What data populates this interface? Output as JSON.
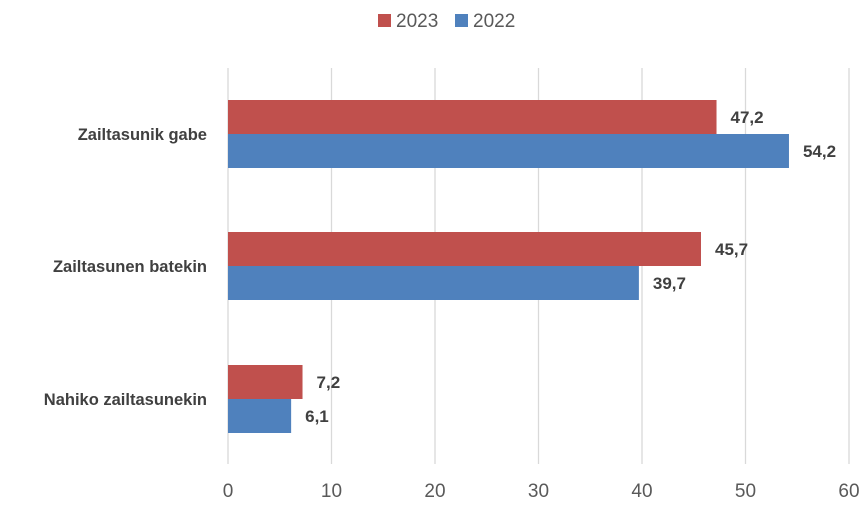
{
  "chart_data": {
    "type": "bar",
    "orientation": "horizontal",
    "title": "",
    "xlabel": "",
    "ylabel": "",
    "categories": [
      "Zailtasunik gabe",
      "Zailtasunen batekin",
      "Nahiko zailtasunekin"
    ],
    "series": [
      {
        "name": "2023",
        "color": "#c0504d",
        "values": [
          47.2,
          45.7,
          7.2
        ],
        "labels": [
          "47,2",
          "45,7",
          "7,2"
        ]
      },
      {
        "name": "2022",
        "color": "#4f81bd",
        "values": [
          54.2,
          39.7,
          6.1
        ],
        "labels": [
          "54,2",
          "39,7",
          "6,1"
        ]
      }
    ],
    "xlim": [
      0,
      60
    ],
    "xticks": [
      0,
      10,
      20,
      30,
      40,
      50,
      60
    ],
    "xtick_labels": [
      "0",
      "10",
      "20",
      "30",
      "40",
      "50",
      "60"
    ],
    "grid": "vertical",
    "legend_position": "top-center"
  }
}
